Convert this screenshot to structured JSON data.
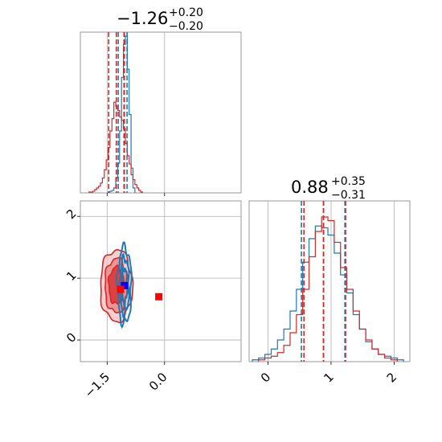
{
  "chart_data": [
    {
      "type": "histogram",
      "panel": "top-left",
      "title": {
        "main": "−1.26",
        "sup": "+0.20",
        "sub": "−0.20"
      },
      "xlim": [
        -2.2,
        2.0
      ],
      "grid": true,
      "series": [
        {
          "name": "",
          "color": "#1f77b4",
          "bin_centers": [
            -1.45,
            -1.4,
            -1.35,
            -1.3,
            -1.25,
            -1.2,
            -1.15,
            -1.1,
            -1.05,
            -1.0,
            -0.95,
            -0.9,
            -0.85,
            -0.8
          ],
          "counts": [
            1,
            2,
            3,
            6,
            18,
            36,
            75,
            140,
            180,
            190,
            150,
            95,
            30,
            6
          ],
          "quantiles": [
            -1.21,
            -1.05,
            -0.98
          ]
        },
        {
          "name": "",
          "color": "#d62728",
          "bin_centers": [
            -1.95,
            -1.9,
            -1.85,
            -1.8,
            -1.75,
            -1.7,
            -1.65,
            -1.6,
            -1.55,
            -1.5,
            -1.45,
            -1.4,
            -1.35,
            -1.3,
            -1.25,
            -1.2,
            -1.15,
            -1.1,
            -1.05,
            -1.0,
            -0.95,
            -0.9,
            -0.85,
            -0.8,
            -0.75,
            -0.7,
            -0.65,
            -0.6
          ],
          "counts": [
            1,
            1,
            2,
            4,
            6,
            8,
            12,
            18,
            28,
            40,
            55,
            75,
            90,
            110,
            105,
            100,
            92,
            88,
            78,
            60,
            45,
            35,
            22,
            16,
            10,
            6,
            3,
            1
          ],
          "quantiles": [
            -1.46,
            -1.26,
            -1.06
          ]
        }
      ]
    },
    {
      "type": "scatter-contour",
      "panel": "bottom-left",
      "xlim": [
        -2.2,
        2.0
      ],
      "ylim": [
        -0.35,
        2.25
      ],
      "x_ticks": [
        "−1.5",
        "0.0"
      ],
      "y_ticks": [
        "0",
        "1",
        "2"
      ],
      "x_tick_values": [
        -1.5,
        0.0
      ],
      "y_tick_values": [
        0,
        1,
        2
      ],
      "grid": true,
      "markers": [
        {
          "x": -1.05,
          "y": 0.88,
          "color": "#0000ff",
          "shape": "square"
        },
        {
          "x": -1.15,
          "y": 0.82,
          "color": "#ff0000",
          "shape": "square"
        },
        {
          "x": -0.15,
          "y": 0.7,
          "color": "#ff0000",
          "shape": "square"
        }
      ]
    },
    {
      "type": "histogram",
      "panel": "bottom-right",
      "title": {
        "main": "0.88",
        "sup": "+0.35",
        "sub": "−0.31"
      },
      "xlim": [
        -0.3,
        2.25
      ],
      "x_ticks": [
        "0",
        "1",
        "2"
      ],
      "x_tick_values": [
        0,
        1,
        2
      ],
      "grid": true,
      "series": [
        {
          "name": "",
          "color": "#1f77b4",
          "bin_centers": [
            -0.2,
            -0.1,
            0.0,
            0.1,
            0.2,
            0.3,
            0.4,
            0.5,
            0.6,
            0.7,
            0.8,
            0.9,
            1.0,
            1.1,
            1.2,
            1.3,
            1.4,
            1.5,
            1.6,
            1.7,
            1.8,
            1.9,
            2.0,
            2.1
          ],
          "counts": [
            1,
            2,
            4,
            7,
            12,
            18,
            28,
            40,
            55,
            68,
            75,
            74,
            70,
            60,
            48,
            38,
            26,
            18,
            11,
            7,
            4,
            3,
            2,
            1
          ],
          "quantiles": [
            0.53,
            0.88,
            1.22
          ]
        },
        {
          "name": "",
          "color": "#d62728",
          "bin_centers": [
            -0.1,
            0.0,
            0.1,
            0.2,
            0.3,
            0.4,
            0.5,
            0.6,
            0.7,
            0.8,
            0.9,
            1.0,
            1.1,
            1.2,
            1.3,
            1.4,
            1.5,
            1.6,
            1.7,
            1.8,
            1.9,
            2.0
          ],
          "counts": [
            1,
            2,
            3,
            5,
            9,
            16,
            26,
            40,
            58,
            72,
            80,
            78,
            66,
            52,
            40,
            28,
            18,
            12,
            7,
            4,
            2,
            1
          ],
          "quantiles": [
            0.57,
            0.88,
            1.23
          ]
        }
      ]
    }
  ]
}
